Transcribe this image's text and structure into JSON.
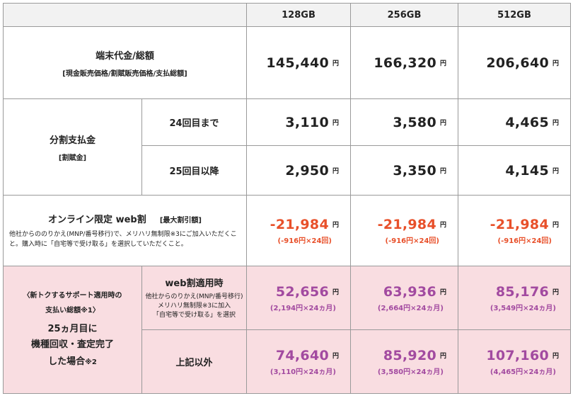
{
  "header": {
    "col_128": "128GB",
    "col_256": "256GB",
    "col_512": "512GB"
  },
  "device_price": {
    "title": "端末代金/総額",
    "subtitle": "[現金販売価格/割賦販売価格/支払総額]",
    "values": [
      "145,440",
      "166,320",
      "206,640"
    ],
    "unit": "円"
  },
  "installment": {
    "title": "分割支払金",
    "subtitle": "[割賦金]",
    "until_24_label": "24回目まで",
    "until_24_values": [
      "3,110",
      "3,580",
      "4,465"
    ],
    "from_25_label": "25回目以降",
    "from_25_values": [
      "2,950",
      "3,350",
      "4,145"
    ]
  },
  "online_discount": {
    "title": "オンライン限定 web割",
    "tag": "[最大割引額]",
    "note": "他社からののりかえ(MNP/番号移行)で、メリハリ無制限※3にご加入いただくこと。購入時に「自宅等で受け取る」を選択していただくこと。",
    "values": [
      "-21,984",
      "-21,984",
      "-21,984"
    ],
    "sub": "(-916円×24回)"
  },
  "support": {
    "title_line1": "〈新トクするサポート適用時の",
    "title_line2": "支払い総額※1〉",
    "main_line1": "25ヵ月目に",
    "main_line2": "機種回収・査定完了",
    "main_line3": "した場合",
    "main_note": "※2",
    "web_label": "web割適用時",
    "web_note1": "他社からのりかえ(MNP/番号移行)",
    "web_note2": "メリハリ無制限※3に加入",
    "web_note3": "「自宅等で受け取る」を選択",
    "web_values": [
      "52,656",
      "63,936",
      "85,176"
    ],
    "web_subs": [
      "(2,194円×24ヵ月)",
      "(2,664円×24ヵ月)",
      "(3,549円×24ヵ月)"
    ],
    "other_label": "上記以外",
    "other_values": [
      "74,640",
      "85,920",
      "107,160"
    ],
    "other_subs": [
      "(3,110円×24ヵ月)",
      "(3,580円×24ヵ月)",
      "(4,465円×24ヵ月)"
    ]
  },
  "colors": {
    "header_bg": "#f2f2f2",
    "pink_bg": "#f9dde1",
    "discount_red": "#e8502a",
    "support_magenta": "#a24aa0",
    "border": "#9a9a9a"
  }
}
